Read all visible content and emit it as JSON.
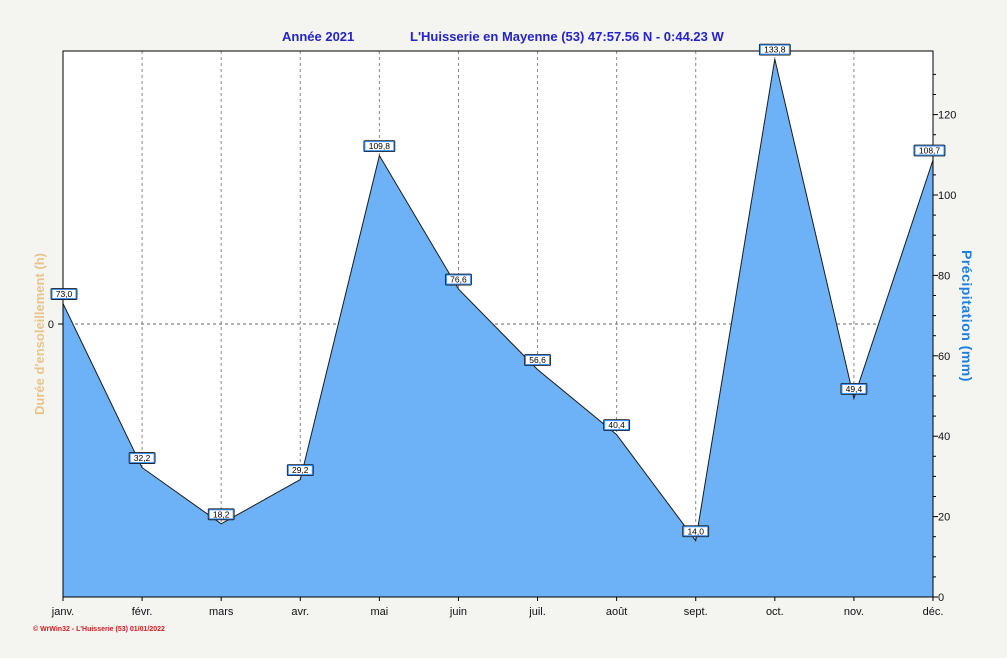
{
  "chart_data": {
    "type": "area",
    "title_left": "Année  2021",
    "title_right": "L'Huisserie en Mayenne (53) 47:57.56 N - 0:44.23 W",
    "categories": [
      "janv.",
      "févr.",
      "mars",
      "avr.",
      "mai",
      "juin",
      "juil.",
      "août",
      "sept.",
      "oct.",
      "nov.",
      "déc."
    ],
    "series": [
      {
        "name": "Précipitation",
        "values": [
          73.0,
          32.2,
          18.2,
          29.2,
          109.8,
          76.6,
          56.6,
          40.4,
          14.0,
          133.8,
          49.4,
          108.7
        ],
        "labels": [
          "73,0",
          "32,2",
          "18,2",
          "29,2",
          "109,8",
          "76,6",
          "56,6",
          "40,4",
          "14,0",
          "133,8",
          "49,4",
          "108,7"
        ]
      }
    ],
    "ylabel_left": "Durée d'ensoleillement  (h)",
    "ylabel_right": "Précipitation  (mm)",
    "y_left_ticks": [
      "0"
    ],
    "y_right_ticks": [
      0,
      20,
      40,
      60,
      80,
      100,
      120
    ],
    "ylim": [
      0,
      135
    ],
    "grid": true,
    "colors": {
      "area": "#6db2f7",
      "line": "#1a1a1a",
      "title": "#2424c8",
      "left_axis": "#e8c48a",
      "right_axis": "#1c7fe0",
      "label_box": "#3d8ff0"
    }
  },
  "footer": "© WrWin32  -  L'Huisserie (53)  01/01/2022"
}
